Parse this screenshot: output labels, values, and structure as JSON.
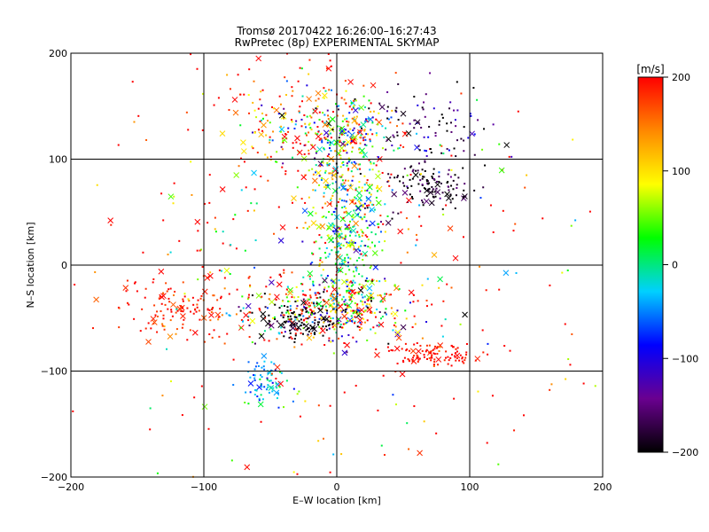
{
  "chart_data": {
    "type": "scatter",
    "title": "Tromsø 20170422 16:26:00–16:27:43",
    "subtitle": "RwPretec (8p) EXPERIMENTAL SKYMAP",
    "xlabel": "E–W location [km]",
    "ylabel": "N–S location [km]",
    "xlim": [
      -200,
      200
    ],
    "ylim": [
      -200,
      200
    ],
    "x_ticks": [
      -200,
      -100,
      0,
      100,
      200
    ],
    "y_ticks": [
      -200,
      -100,
      0,
      100,
      200
    ],
    "gridlines_x": [
      -100,
      0,
      100
    ],
    "gridlines_y": [
      -100,
      0,
      100
    ],
    "grid": true,
    "colorbar": {
      "label": "[m/s]",
      "range": [
        -200,
        200
      ],
      "ticks": [
        200,
        100,
        0,
        -100,
        -200
      ],
      "colors": [
        "#000000",
        "#6a0090",
        "#0000ff",
        "#00d0ff",
        "#00ff00",
        "#ffff00",
        "#ff8800",
        "#ff0000"
      ]
    },
    "clusters": [
      {
        "cx": 0,
        "cy": 125,
        "sx": 28,
        "sy": 18,
        "n": 260,
        "v": 40,
        "vs": 140
      },
      {
        "cx": 5,
        "cy": 70,
        "sx": 18,
        "sy": 35,
        "n": 240,
        "v": 60,
        "vs": 90
      },
      {
        "cx": 10,
        "cy": 10,
        "sx": 14,
        "sy": 35,
        "n": 240,
        "v": 10,
        "vs": 70
      },
      {
        "cx": -10,
        "cy": -42,
        "sx": 30,
        "sy": 15,
        "n": 380,
        "v": 60,
        "vs": 180
      },
      {
        "cx": -25,
        "cy": -55,
        "sx": 15,
        "sy": 8,
        "n": 90,
        "v": -200,
        "vs": 20
      },
      {
        "cx": 70,
        "cy": 75,
        "sx": 15,
        "sy": 12,
        "n": 120,
        "v": -190,
        "vs": 25
      },
      {
        "cx": 70,
        "cy": 130,
        "sx": 25,
        "sy": 20,
        "n": 90,
        "v": -160,
        "vs": 50
      },
      {
        "cx": 70,
        "cy": -85,
        "sx": 20,
        "sy": 6,
        "n": 110,
        "v": 200,
        "vs": 15
      },
      {
        "cx": -120,
        "cy": -40,
        "sx": 25,
        "sy": 15,
        "n": 130,
        "v": 190,
        "vs": 20
      },
      {
        "cx": -55,
        "cy": -110,
        "sx": 8,
        "sy": 10,
        "n": 70,
        "v": -40,
        "vs": 30
      },
      {
        "cx": -30,
        "cy": 145,
        "sx": 40,
        "sy": 30,
        "n": 110,
        "v": 180,
        "vs": 60
      },
      {
        "cx": 0,
        "cy": 0,
        "sx": 110,
        "sy": 110,
        "n": 360,
        "v": 170,
        "vs": 120
      }
    ]
  }
}
